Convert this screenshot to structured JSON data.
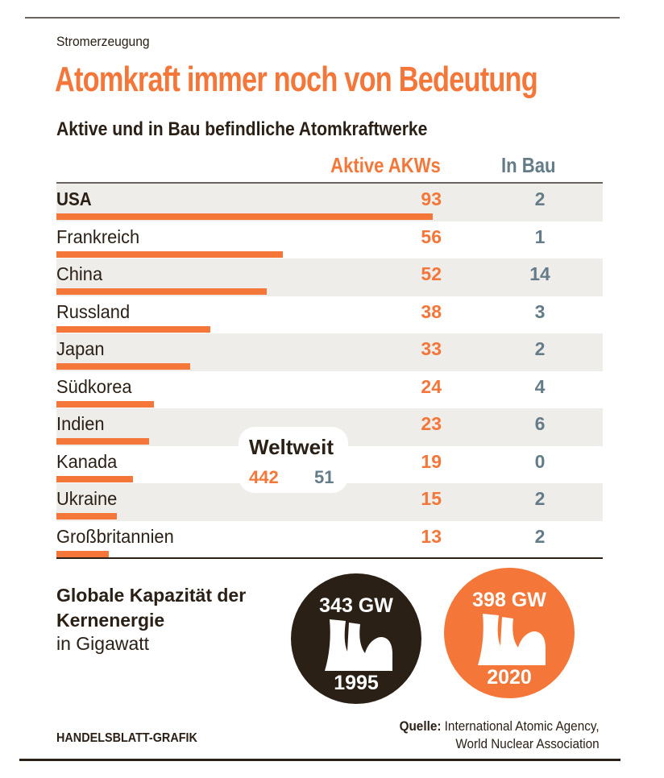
{
  "header": {
    "kicker": "Stromerzeugung",
    "title": "Atomkraft immer noch von Bedeutung",
    "subtitle": "Aktive und in Bau befindliche Atomkraftwerke"
  },
  "colors": {
    "accent": "#f47638",
    "secondary": "#647c88",
    "dark": "#2b2016",
    "row_shade": "#efedea"
  },
  "chart_data": {
    "type": "bar",
    "title": "Aktive und in Bau befindliche Atomkraftwerke",
    "columns": [
      "Aktive AKWs",
      "In Bau"
    ],
    "categories": [
      "USA",
      "Frankreich",
      "China",
      "Russland",
      "Japan",
      "Südkorea",
      "Indien",
      "Kanada",
      "Ukraine",
      "Großbritannien"
    ],
    "series": [
      {
        "name": "Aktive AKWs",
        "values": [
          93,
          56,
          52,
          38,
          33,
          24,
          23,
          19,
          15,
          13
        ]
      },
      {
        "name": "In Bau",
        "values": [
          2,
          1,
          14,
          3,
          2,
          4,
          6,
          0,
          2,
          2
        ]
      }
    ],
    "xlim": [
      0,
      93
    ],
    "total": {
      "label": "Weltweit",
      "active": 442,
      "under_construction": 51
    }
  },
  "capacity": {
    "title": "Globale Kapazität der Kernenergie",
    "unit_label": "in Gigawatt",
    "items": [
      {
        "value": "343 GW",
        "year": "1995"
      },
      {
        "value": "398 GW",
        "year": "2020"
      }
    ]
  },
  "footer": {
    "brand": "HANDELSBLATT-GRAFIK",
    "source_label": "Quelle:",
    "source_line1": "International Atomic Agency,",
    "source_line2": "World Nuclear Association"
  }
}
